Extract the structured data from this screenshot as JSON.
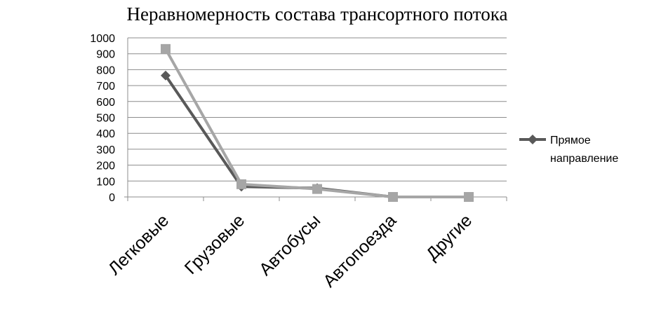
{
  "chart_data": {
    "type": "line",
    "title": "Неравномерность  состава  трансортного  потока",
    "categories": [
      "Легковые",
      "Грузовые",
      "Автобусы",
      "Автопоезда",
      "Другие"
    ],
    "y_ticks": [
      "0",
      "100",
      "200",
      "300",
      "400",
      "500",
      "600",
      "700",
      "800",
      "900",
      "1000"
    ],
    "ylim": [
      0,
      1000
    ],
    "grid": true,
    "legend_position": "right",
    "series": [
      {
        "name": "Прямое направление",
        "values": [
          763,
          65,
          55,
          0,
          0
        ],
        "color": "#595959",
        "marker": "diamond"
      },
      {
        "name": "",
        "values": [
          930,
          80,
          50,
          0,
          0
        ],
        "color": "#a6a6a6",
        "marker": "square"
      }
    ],
    "legend_lines": [
      "Прямое",
      "направление"
    ]
  }
}
